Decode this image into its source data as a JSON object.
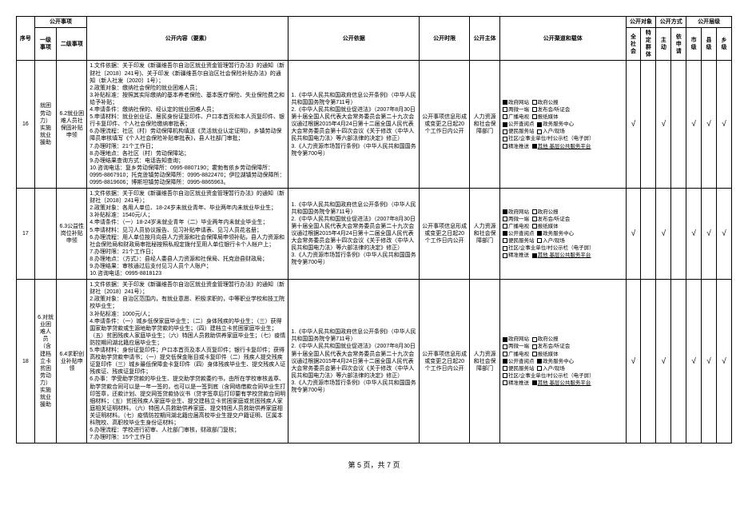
{
  "header": {
    "col_seq": "序号",
    "col_matter": "公开事项",
    "col_level1": "一级事项",
    "col_level2": "二级事项",
    "col_content": "公开内容（要素）",
    "col_basis": "公开依据",
    "col_time": "公开时限",
    "col_subject": "公开主体",
    "col_channel": "公开渠道和载体",
    "col_target": "公开对象",
    "col_method": "公开方式",
    "col_level": "公开层级",
    "sub_all": "全社会",
    "sub_specific": "特定群体",
    "sub_active": "主动",
    "sub_request": "依申请",
    "sub_city": "市级",
    "sub_county": "县级",
    "sub_township": "乡级"
  },
  "rows": [
    {
      "seq": "16",
      "level1": "就困劳动力）实施就业援助",
      "level2": "6.2就业困难人员社保固补贴申领",
      "content": "1.文件依据：关于印发《新疆维吾尔自治区就业资金管理暂行办法》的通知（新财社〔2018〕241号)、关于印发《新疆维吾尔自治区社会保险补贴办法》的通知（新人社发〔2020〕1号）；\n2.政策对象：缴纳社会保险的就业困难人员；\n3.补贴标准：按照其实际缴纳的基本养老保险、基本医疗保险、失业保险费之和给予补贴；\n4.申请条件：缴纳社保的、经认定的就业困难人员；\n5.申请材料：就业创业证、居民身份证复印件、户口本首页和本人页复印件、银行卡复印件、个人社会保险缴纳审批表；\n6.办理流程：社区（村）劳动保障机构填送《灵活就业认定证明》，乡镇劳动保障员审核填写《个人社会保险补贴审批表》，县人社部门审批；\n7.办理时限：21个工作日；\n8.办理地点：各社区（村）劳动保障站；\n9.办理结果查询方式：电话告知查询；\n10.咨询电话：复乡劳动保障所：0995-8807190；霍勃有依乡劳动保障所：0995-8867910；托克逊镇劳动保障所：0995-8822470；伊拉湖镇劳动保障所：0995-8819606；博斯坦镇劳动保障所：0995-8865963。",
      "basis": "1.《中华人民共和国政府信息公开条例》（中华人民共和国国务院令第711号）\n2.《中华人民共和国就业促进法》（2007年8月30日第十届全国人民代表大会常务委员会第二十九次会议通过根据2015年4月24日第十二届全国人民代表大会常务委员会第十四次会议《关于修改〈中华人民共和国电力法〉等六部法律的决定》修正）\n3.《人力资源市场暂行条例》（中华人民共和国国务院令第700号）",
      "time": "公开事项信息形成或变更之日起20个工作日内公开",
      "subject": "人力资源和社会保障部门",
      "channel_rows": [
        [
          {
            "f": 1,
            "t": "政府网站"
          },
          {
            "f": 0,
            "t": "政府公报"
          }
        ],
        [
          {
            "f": 0,
            "t": "两微一端"
          },
          {
            "f": 0,
            "t": "发布会/听证会"
          }
        ],
        [
          {
            "f": 0,
            "t": "广播电视"
          },
          {
            "f": 0,
            "t": "报纸媒体"
          }
        ],
        [
          {
            "f": 1,
            "t": "公开查阅点"
          },
          {
            "f": 1,
            "t": "政务服务中心"
          }
        ],
        [
          {
            "f": 0,
            "t": "便民服务站"
          },
          {
            "f": 0,
            "t": "入户/现场"
          }
        ],
        [
          {
            "f": 0,
            "t": "社区/企事业单位/村公示栏（电子屏）"
          }
        ],
        [
          {
            "f": 0,
            "t": "精准推送"
          },
          {
            "f": 1,
            "t": "其他 基层公共服务平台",
            "ul": 1
          }
        ]
      ],
      "checks": {
        "all": "√",
        "specific": "",
        "active": "√",
        "request": "",
        "city": "√",
        "county": "√",
        "township": "√"
      }
    },
    {
      "seq": "17",
      "level1": "",
      "level2": "6.3公益性岗位补贴申领",
      "content": "1.文件依据：关于印发《新疆维吾尔自治区就业资金管理暂行办法》的通知（新财社〔2018〕241号）；\n2.政策对象：各用人单位、18-24岁未就业青年、毕业两年内未就业毕业生；\n3.补贴标准：1540元/人；\n4.申请条件：（一）18-24岁未就业青年（二）毕业两年内未就业毕业生；\n5.申请材料：见习人员协议报告、见习补贴申请表、见习人员花名册；\n6.办理流程：用人单位按月向县人力资源和社会保障局申领补贴，县人力资源和社会保险局和财政局审批秘按照私规定拨付至用人单位银行卡个人帐户上；\n7.办理时限：21个工作日；\n8.办理地点：（方式）：县经人委县人力资源和社保局、托克逊县财政局；\n9.办理结果：审核通过后支付见习人员个人账户；\n10.咨询电话：0995-8818123",
      "basis": "1.《中华人民共和国政府信息公开条例》（中华人民共和国国务院令第711号）\n2.《中华人民共和国就业促进法》（2007年8月30日第十届全国人民代表大会常务委员会第二十九次会议通过根据2015年4月24日第十二届全国人民代表大会常务委员会第十四次会议《关于修改〈中华人民共和国电力法〉等六部法律的决定》修正）\n3.《人力资源市场暂行条例》（中华人民共和国国务院令第700号）",
      "time": "公开事项信息形成或变更之日起20个工作日内公开",
      "subject": "人力资源和社会保障部门",
      "channel_rows": [
        [
          {
            "f": 1,
            "t": "政府网站"
          },
          {
            "f": 0,
            "t": "政府公报"
          }
        ],
        [
          {
            "f": 0,
            "t": "两微一端"
          },
          {
            "f": 0,
            "t": "发布会/听证会"
          }
        ],
        [
          {
            "f": 0,
            "t": "广播电视"
          },
          {
            "f": 0,
            "t": "报纸媒体"
          }
        ],
        [
          {
            "f": 1,
            "t": "公开查阅点"
          },
          {
            "f": 1,
            "t": "政务服务中心"
          }
        ],
        [
          {
            "f": 0,
            "t": "便民服务站"
          },
          {
            "f": 0,
            "t": "入户/现场"
          }
        ],
        [
          {
            "f": 0,
            "t": "社区/企事业单位/村公示栏（电子屏）"
          }
        ],
        [
          {
            "f": 0,
            "t": "精准推送"
          },
          {
            "f": 1,
            "t": "其他 基层公共服务平台",
            "ul": 1
          }
        ]
      ],
      "checks": {
        "all": "√",
        "specific": "",
        "active": "√",
        "request": "",
        "city": "√",
        "county": "√",
        "township": "√"
      }
    },
    {
      "seq": "18",
      "level1": "6.对就业困难人员（含建档立卡贫困劳动力）实施就业援助",
      "level2": "6.4求职创业补贴申领",
      "content": "1.文件依据：关于印发《新疆维吾尔自治区就业资金管理暂行办法》的通知（新财社〔2018〕241号）；\n2.政策对象：自治区范围内，有就业意愿、积极求职的，中等职业学校和技工院校毕业生；\n3.补贴标准：1000元/人；\n4.申请条件：（一）城乡低保家庭毕业生；（二）身体残疾的毕业生；（三）获得国家助学贷款或生源地助学贷款的毕业生；（四）建档立卡贫困家庭毕业生；（五）贫困残疾人家庭毕业生；（六）特困人员救助供养家庭毕业生；（七）疫情防控期间湖北籍应届毕业生；\n5.申请材料：身份证复印件；户口本首页及本人页复印件；银行卡复印件；获得高校助学贷款申请书；（一）提交低保金账目或卡复印件（二）残疾人提交残疾证复印件（三）城乡最低保障金卡复印件（四）身体残疾毕业生、提交残疾人证残疾证、残疾证复印件；\n6.办事：学受助学贷款的毕业生、提交助学贷款委约书，由所在学校审核盖章、助学贷款合同可以是一年一签的，也可以是一签到底（含网络借款合同毕业生打印签章，还款计划、提交网签贷款协议书（贷字签章后打印要有学校贷款合同明细材料；（五）贫困残疾人家庭毕业生、提交建档立卡贫困家庭或贫困残疾人家庭相关证明材料。（六）特困人员救助供养家庭、提交特困人员救助供养家庭相关证明材料。（七）疫情防控期间湖北籍应届高校毕业生提交户籍证明、区属本科院校、高职校毕业生身份证材料；\n6.办理流程：学校进行初审、人社部门审核，财政部门复核；\n7.办理时限：15个工作日",
      "basis": "1.《中华人民共和国政府信息公开条例》（中华人民共和国国务院令第711号）\n2.《中华人民共和国就业促进法》（2007年8月30日第十届全国人民代表大会常务委员会第二十九次会议通过根据2015年4月24日第十二届全国人民代表大会常务委员会第十四次会议《关于修改〈中华人民共和国电力法〉等六部法律的决定》修正）\n3.《人力资源市场暂行条例》（中华人民共和国国务院令第700号）",
      "time": "公开事项信息形成或变更之日起20个工作日内公开",
      "subject": "人力资源和社会保障部门",
      "channel_rows": [
        [
          {
            "f": 1,
            "t": "政府网站"
          },
          {
            "f": 0,
            "t": "政府公报"
          }
        ],
        [
          {
            "f": 0,
            "t": "两微一端"
          },
          {
            "f": 0,
            "t": "发布会/听证会"
          }
        ],
        [
          {
            "f": 0,
            "t": "广播电视"
          },
          {
            "f": 0,
            "t": "报纸媒体"
          }
        ],
        [
          {
            "f": 1,
            "t": "公开查阅点"
          },
          {
            "f": 1,
            "t": "政务服务中心"
          }
        ],
        [
          {
            "f": 0,
            "t": "便民服务站"
          },
          {
            "f": 0,
            "t": "入户/现场"
          }
        ],
        [
          {
            "f": 0,
            "t": "社区/企事业单位/村公示栏（电子屏）"
          }
        ],
        [
          {
            "f": 0,
            "t": "精准推送"
          },
          {
            "f": 1,
            "t": "其他 基层公共服务平台",
            "ul": 1
          }
        ]
      ],
      "checks": {
        "all": "√",
        "specific": "",
        "active": "√",
        "request": "",
        "city": "√",
        "county": "√",
        "township": "√"
      }
    }
  ],
  "footer": "第 5 页，共 7 页"
}
